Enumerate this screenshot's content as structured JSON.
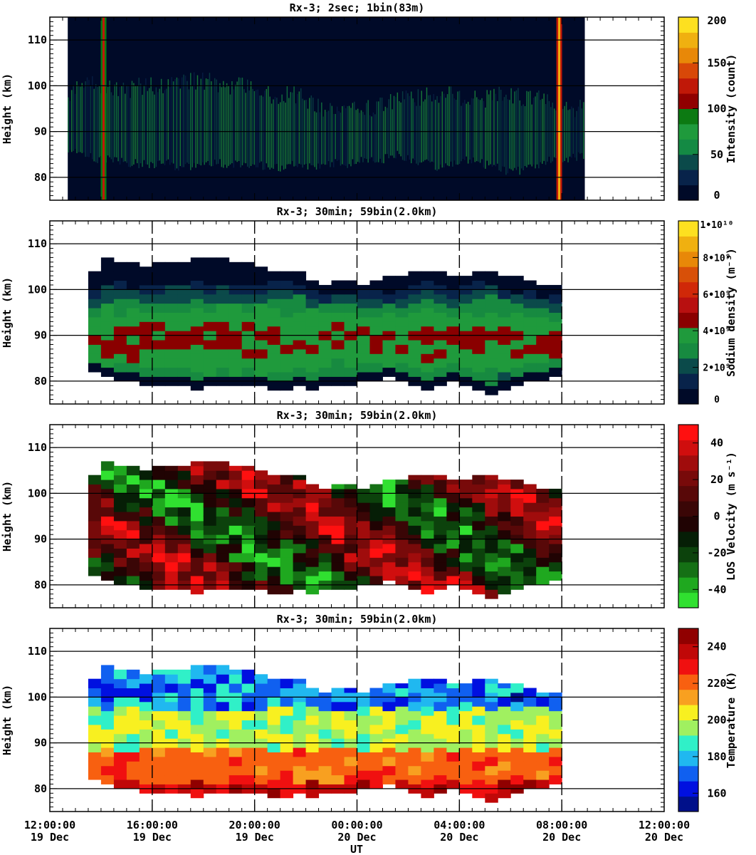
{
  "xaxis": {
    "label": "UT",
    "range_hours": [
      0,
      24
    ],
    "ticks": [
      {
        "hour": 0,
        "time": "12:00:00",
        "date": "19 Dec"
      },
      {
        "hour": 4,
        "time": "16:00:00",
        "date": "19 Dec"
      },
      {
        "hour": 8,
        "time": "20:00:00",
        "date": "19 Dec"
      },
      {
        "hour": 12,
        "time": "00:00:00",
        "date": "20 Dec"
      },
      {
        "hour": 16,
        "time": "04:00:00",
        "date": "20 Dec"
      },
      {
        "hour": 20,
        "time": "08:00:00",
        "date": "20 Dec"
      },
      {
        "hour": 24,
        "time": "12:00:00",
        "date": "20 Dec"
      }
    ]
  },
  "chart_data": [
    {
      "type": "heatmap",
      "title": "Rx-3;  2sec; 1bin(83m)",
      "ylabel": "Height (km)",
      "ylim": [
        75,
        115
      ],
      "yticks": [
        "80",
        "90",
        "100",
        "110"
      ],
      "data_span_hours": [
        0.7,
        20.9
      ],
      "colorbar": {
        "label": "Intensity (count)",
        "range": [
          0,
          200
        ],
        "ticks": [
          "0",
          "50",
          "100",
          "150",
          "200"
        ],
        "colors": [
          "#000a28",
          "#08234a",
          "#0b4a4a",
          "#148a44",
          "#1f9a3c",
          "#0c7a12",
          "#900000",
          "#c01808",
          "#d84808",
          "#e88808",
          "#f0b010",
          "#fde020"
        ]
      }
    },
    {
      "type": "heatmap",
      "title": "Rx-3; 30min; 59bin(2.0km)",
      "ylabel": "Height (km)",
      "ylim": [
        75,
        115
      ],
      "yticks": [
        "80",
        "90",
        "100",
        "110"
      ],
      "grid_hours": [
        4,
        8,
        12,
        16,
        20
      ],
      "data_span_hours": [
        1.5,
        20.0
      ],
      "upper_edge_km": [
        104,
        107,
        106,
        106,
        105,
        106,
        106,
        106,
        107,
        107,
        107,
        106,
        106,
        105,
        104,
        104,
        104,
        102,
        101,
        102,
        102,
        101,
        102,
        103,
        103,
        104,
        104,
        104,
        103,
        103,
        104,
        104,
        103,
        103,
        102,
        101,
        101
      ],
      "lower_edge_km": [
        82,
        81,
        80,
        80,
        79,
        79,
        79,
        79,
        78,
        79,
        79,
        79,
        79,
        79,
        78,
        78,
        79,
        78,
        79,
        79,
        79,
        80,
        80,
        81,
        80,
        79,
        78,
        79,
        80,
        79,
        78,
        77,
        78,
        79,
        80,
        80,
        81
      ],
      "colorbar": {
        "label": "Sodium density (m⁻³)",
        "range": [
          0,
          10000000000
        ],
        "ticks": [
          "0",
          "2•10⁹",
          "4•10⁹",
          "6•10⁹",
          "8•10⁹",
          "1•10¹⁰"
        ],
        "colors": [
          "#000a28",
          "#08234a",
          "#0b4a4a",
          "#178a40",
          "#1f9a3c",
          "#8a0000",
          "#b81010",
          "#d02808",
          "#d85008",
          "#e88808",
          "#f0b010",
          "#fde020"
        ]
      }
    },
    {
      "type": "heatmap",
      "title": "Rx-3; 30min; 59bin(2.0km)",
      "ylabel": "Height (km)",
      "ylim": [
        75,
        115
      ],
      "yticks": [
        "80",
        "90",
        "100",
        "110"
      ],
      "grid_hours": [
        4,
        8,
        12,
        16,
        20
      ],
      "data_span_hours": [
        1.5,
        20.0
      ],
      "colorbar": {
        "label": "LOS Velocity (m s⁻¹)",
        "range": [
          -50,
          50
        ],
        "ticks": [
          "-40",
          "-20",
          "0",
          "20",
          "40"
        ],
        "colors": [
          "#30e030",
          "#1fa81f",
          "#157015",
          "#0c420c",
          "#061e06",
          "#200303",
          "#3a0606",
          "#580808",
          "#780a0a",
          "#a00c0c",
          "#d00e0e",
          "#ff1010"
        ]
      }
    },
    {
      "type": "heatmap",
      "title": "Rx-3; 30min; 59bin(2.0km)",
      "ylabel": "Height (km)",
      "ylim": [
        75,
        115
      ],
      "yticks": [
        "80",
        "90",
        "100",
        "110"
      ],
      "grid_hours": [
        4,
        8,
        12,
        16,
        20
      ],
      "data_span_hours": [
        1.5,
        20.0
      ],
      "colorbar": {
        "label": "Temperature (K)",
        "range": [
          150,
          250
        ],
        "ticks": [
          "160",
          "180",
          "200",
          "220",
          "240"
        ],
        "colors": [
          "#00108a",
          "#0010e0",
          "#1060f0",
          "#20b8f0",
          "#30f0c8",
          "#a0f060",
          "#f8f020",
          "#f8a020",
          "#f86010",
          "#f01010",
          "#c00808",
          "#900000"
        ]
      }
    }
  ]
}
